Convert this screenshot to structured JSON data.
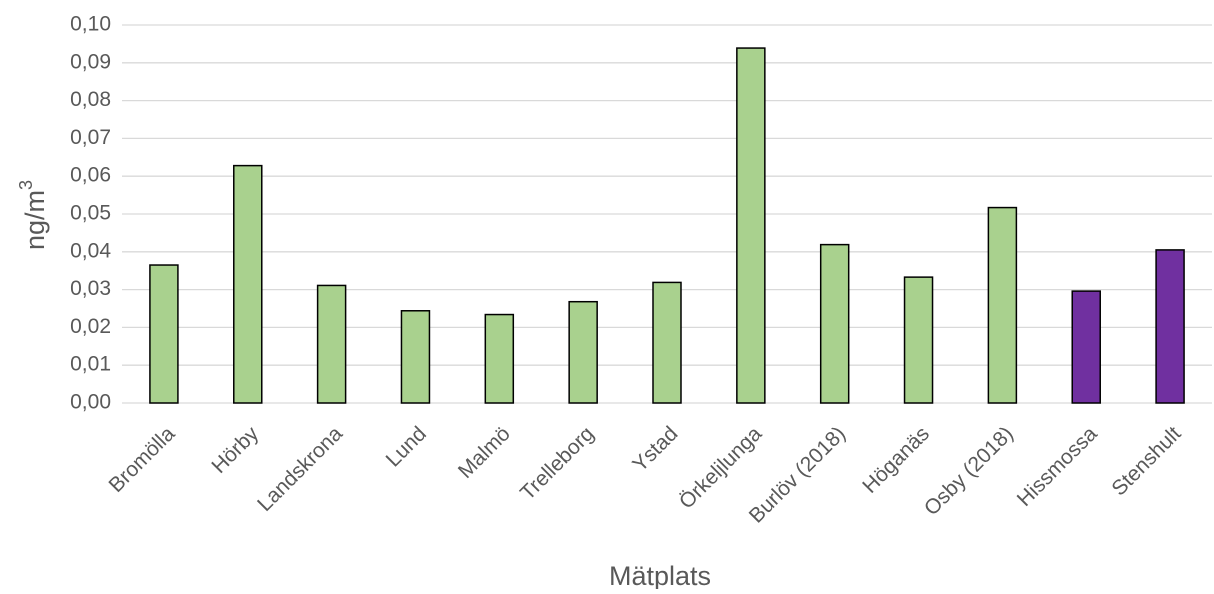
{
  "chart_data": {
    "type": "bar",
    "categories": [
      "Bromölla",
      "Hörby",
      "Landskrona",
      "Lund",
      "Malmö",
      "Trelleborg",
      "Ystad",
      "Örkeljlunga",
      "Burlöv (2018)",
      "Höganäs",
      "Osby (2018)",
      "Hissmossa",
      "Stenshult"
    ],
    "values": [
      0.0365,
      0.0628,
      0.0311,
      0.0244,
      0.0234,
      0.0268,
      0.0319,
      0.0939,
      0.0419,
      0.0333,
      0.0517,
      0.0296,
      0.0405
    ],
    "colors": [
      "#a9d18e",
      "#a9d18e",
      "#a9d18e",
      "#a9d18e",
      "#a9d18e",
      "#a9d18e",
      "#a9d18e",
      "#a9d18e",
      "#a9d18e",
      "#a9d18e",
      "#a9d18e",
      "#7030a0",
      "#7030a0"
    ],
    "bar_outline_color": "#000000",
    "gridline_color": "#d9d9d9",
    "ylim": [
      0,
      0.1
    ],
    "ytick_values": [
      0,
      0.01,
      0.02,
      0.03,
      0.04,
      0.05,
      0.06,
      0.07,
      0.08,
      0.09,
      0.1
    ],
    "ytick_labels": [
      "0,00",
      "0,01",
      "0,02",
      "0,03",
      "0,04",
      "0,05",
      "0,06",
      "0,07",
      "0,08",
      "0,09",
      "0,10"
    ],
    "ylabel": "ng/m",
    "ylabel_superscript": "3",
    "xlabel": "Mätplats",
    "grid": true,
    "legend": "none"
  }
}
